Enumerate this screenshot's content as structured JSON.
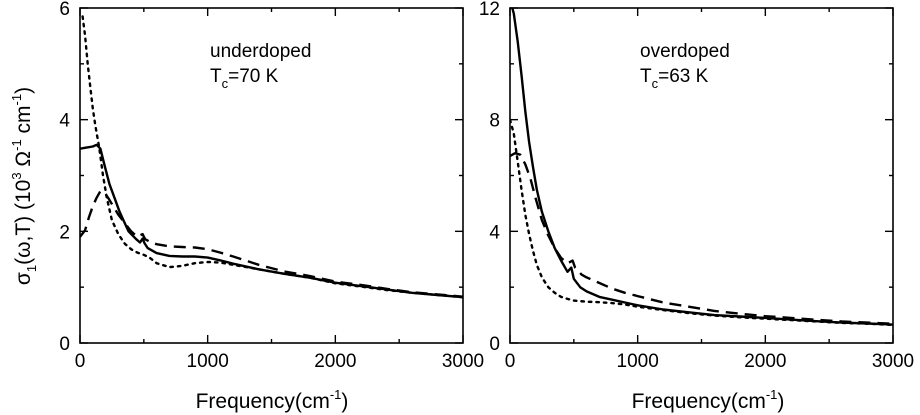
{
  "chart_data": [
    {
      "type": "line",
      "annotation": {
        "main": "underdoped",
        "t_prefix": "T",
        "t_sub": "c",
        "t_value": "=70 K"
      },
      "xlabel": {
        "main": "Frequency(cm",
        "sup": "-1",
        "close": ")"
      },
      "ylabel": {
        "a": "σ",
        "a_sub": "1",
        "b": "(ω,T) (10",
        "b_sup": "3",
        "c": " Ω",
        "c_sup": "-1",
        "d": " cm",
        "d_sup": "-1",
        "e": ")"
      },
      "xlim": [
        0,
        3000
      ],
      "ylim": [
        0,
        6
      ],
      "x_ticks": [
        0,
        1000,
        2000,
        3000
      ],
      "x_tick_labels": [
        "0",
        "1000",
        "2000",
        "3000"
      ],
      "y_ticks": [
        0,
        2,
        4,
        6
      ],
      "y_tick_labels": [
        "0",
        "2",
        "4",
        "6"
      ],
      "grid": false,
      "series": [
        {
          "style": "solid",
          "points": [
            [
              0,
              3.48
            ],
            [
              50,
              3.5
            ],
            [
              100,
              3.52
            ],
            [
              130,
              3.55
            ],
            [
              160,
              3.48
            ],
            [
              190,
              3.2
            ],
            [
              230,
              2.85
            ],
            [
              270,
              2.6
            ],
            [
              310,
              2.35
            ],
            [
              350,
              2.15
            ],
            [
              380,
              2.0
            ],
            [
              410,
              1.93
            ],
            [
              440,
              1.86
            ],
            [
              470,
              1.8
            ],
            [
              490,
              1.87
            ],
            [
              505,
              1.79
            ],
            [
              530,
              1.7
            ],
            [
              600,
              1.61
            ],
            [
              700,
              1.56
            ],
            [
              800,
              1.55
            ],
            [
              900,
              1.55
            ],
            [
              1000,
              1.53
            ],
            [
              1100,
              1.48
            ],
            [
              1200,
              1.42
            ],
            [
              1400,
              1.32
            ],
            [
              1600,
              1.24
            ],
            [
              1800,
              1.17
            ],
            [
              2000,
              1.08
            ],
            [
              2200,
              1.02
            ],
            [
              2400,
              0.96
            ],
            [
              2600,
              0.9
            ],
            [
              2800,
              0.86
            ],
            [
              3000,
              0.82
            ]
          ]
        },
        {
          "style": "dashed",
          "points": [
            [
              0,
              1.9
            ],
            [
              40,
              2.02
            ],
            [
              70,
              2.25
            ],
            [
              100,
              2.45
            ],
            [
              130,
              2.6
            ],
            [
              160,
              2.72
            ],
            [
              190,
              2.7
            ],
            [
              220,
              2.6
            ],
            [
              260,
              2.45
            ],
            [
              300,
              2.3
            ],
            [
              350,
              2.15
            ],
            [
              400,
              2.0
            ],
            [
              450,
              1.9
            ],
            [
              490,
              1.95
            ],
            [
              510,
              1.86
            ],
            [
              560,
              1.8
            ],
            [
              600,
              1.77
            ],
            [
              700,
              1.73
            ],
            [
              800,
              1.72
            ],
            [
              900,
              1.71
            ],
            [
              1000,
              1.68
            ],
            [
              1100,
              1.62
            ],
            [
              1200,
              1.55
            ],
            [
              1400,
              1.4
            ],
            [
              1600,
              1.28
            ],
            [
              1800,
              1.2
            ],
            [
              2000,
              1.1
            ],
            [
              2200,
              1.04
            ],
            [
              2400,
              0.97
            ],
            [
              2600,
              0.91
            ],
            [
              2800,
              0.87
            ],
            [
              3000,
              0.83
            ]
          ]
        },
        {
          "style": "dotted",
          "points": [
            [
              20,
              5.85
            ],
            [
              40,
              5.5
            ],
            [
              60,
              5.0
            ],
            [
              80,
              4.6
            ],
            [
              100,
              4.2
            ],
            [
              120,
              3.9
            ],
            [
              150,
              3.5
            ],
            [
              180,
              3.0
            ],
            [
              210,
              2.6
            ],
            [
              250,
              2.2
            ],
            [
              300,
              1.95
            ],
            [
              350,
              1.78
            ],
            [
              400,
              1.68
            ],
            [
              450,
              1.62
            ],
            [
              500,
              1.58
            ],
            [
              550,
              1.52
            ],
            [
              600,
              1.43
            ],
            [
              700,
              1.36
            ],
            [
              800,
              1.38
            ],
            [
              900,
              1.43
            ],
            [
              1000,
              1.45
            ],
            [
              1100,
              1.44
            ],
            [
              1200,
              1.4
            ],
            [
              1400,
              1.32
            ],
            [
              1600,
              1.24
            ],
            [
              1800,
              1.17
            ],
            [
              2000,
              1.07
            ],
            [
              2200,
              1.01
            ],
            [
              2400,
              0.95
            ],
            [
              2600,
              0.9
            ],
            [
              2800,
              0.86
            ],
            [
              3000,
              0.82
            ]
          ]
        }
      ]
    },
    {
      "type": "line",
      "annotation": {
        "main": "overdoped",
        "t_prefix": "T",
        "t_sub": "c",
        "t_value": "=63 K"
      },
      "xlabel": {
        "main": "Frequency(cm",
        "sup": "-1",
        "close": ")"
      },
      "xlim": [
        0,
        3000
      ],
      "ylim": [
        0,
        12
      ],
      "x_ticks": [
        0,
        1000,
        2000,
        3000
      ],
      "x_tick_labels": [
        "0",
        "1000",
        "2000",
        "3000"
      ],
      "y_ticks": [
        0,
        4,
        8,
        12
      ],
      "y_tick_labels": [
        "0",
        "4",
        "8",
        "12"
      ],
      "grid": false,
      "series": [
        {
          "style": "solid",
          "points": [
            [
              0,
              12.3
            ],
            [
              30,
              11.8
            ],
            [
              60,
              10.8
            ],
            [
              90,
              9.6
            ],
            [
              120,
              8.3
            ],
            [
              150,
              7.2
            ],
            [
              180,
              6.3
            ],
            [
              210,
              5.5
            ],
            [
              250,
              4.7
            ],
            [
              300,
              4.0
            ],
            [
              350,
              3.4
            ],
            [
              400,
              2.95
            ],
            [
              450,
              2.55
            ],
            [
              480,
              2.7
            ],
            [
              500,
              2.3
            ],
            [
              550,
              2.0
            ],
            [
              600,
              1.85
            ],
            [
              700,
              1.65
            ],
            [
              800,
              1.55
            ],
            [
              900,
              1.45
            ],
            [
              1000,
              1.35
            ],
            [
              1200,
              1.2
            ],
            [
              1400,
              1.1
            ],
            [
              1600,
              1.0
            ],
            [
              1800,
              0.95
            ],
            [
              2000,
              0.9
            ],
            [
              2200,
              0.84
            ],
            [
              2400,
              0.78
            ],
            [
              2600,
              0.73
            ],
            [
              2800,
              0.7
            ],
            [
              3000,
              0.66
            ]
          ]
        },
        {
          "style": "dashed",
          "points": [
            [
              0,
              6.7
            ],
            [
              40,
              6.8
            ],
            [
              80,
              6.75
            ],
            [
              120,
              6.4
            ],
            [
              160,
              5.9
            ],
            [
              200,
              5.2
            ],
            [
              250,
              4.4
            ],
            [
              300,
              3.85
            ],
            [
              350,
              3.4
            ],
            [
              400,
              3.05
            ],
            [
              450,
              2.85
            ],
            [
              490,
              2.95
            ],
            [
              510,
              2.7
            ],
            [
              560,
              2.45
            ],
            [
              600,
              2.35
            ],
            [
              700,
              2.15
            ],
            [
              800,
              1.95
            ],
            [
              900,
              1.8
            ],
            [
              1000,
              1.68
            ],
            [
              1200,
              1.45
            ],
            [
              1400,
              1.3
            ],
            [
              1600,
              1.15
            ],
            [
              1800,
              1.05
            ],
            [
              2000,
              0.96
            ],
            [
              2200,
              0.9
            ],
            [
              2400,
              0.83
            ],
            [
              2600,
              0.77
            ],
            [
              2800,
              0.73
            ],
            [
              3000,
              0.69
            ]
          ]
        },
        {
          "style": "dotted",
          "points": [
            [
              0,
              8.0
            ],
            [
              30,
              7.5
            ],
            [
              60,
              6.5
            ],
            [
              90,
              5.5
            ],
            [
              120,
              4.6
            ],
            [
              150,
              3.9
            ],
            [
              180,
              3.3
            ],
            [
              210,
              2.8
            ],
            [
              250,
              2.35
            ],
            [
              300,
              2.0
            ],
            [
              350,
              1.8
            ],
            [
              400,
              1.65
            ],
            [
              450,
              1.58
            ],
            [
              500,
              1.52
            ],
            [
              600,
              1.48
            ],
            [
              700,
              1.46
            ],
            [
              800,
              1.43
            ],
            [
              900,
              1.38
            ],
            [
              1000,
              1.3
            ],
            [
              1200,
              1.18
            ],
            [
              1400,
              1.07
            ],
            [
              1600,
              0.98
            ],
            [
              1800,
              0.92
            ],
            [
              2000,
              0.87
            ],
            [
              2200,
              0.82
            ],
            [
              2400,
              0.77
            ],
            [
              2600,
              0.72
            ],
            [
              2800,
              0.69
            ],
            [
              3000,
              0.65
            ]
          ]
        }
      ]
    }
  ]
}
